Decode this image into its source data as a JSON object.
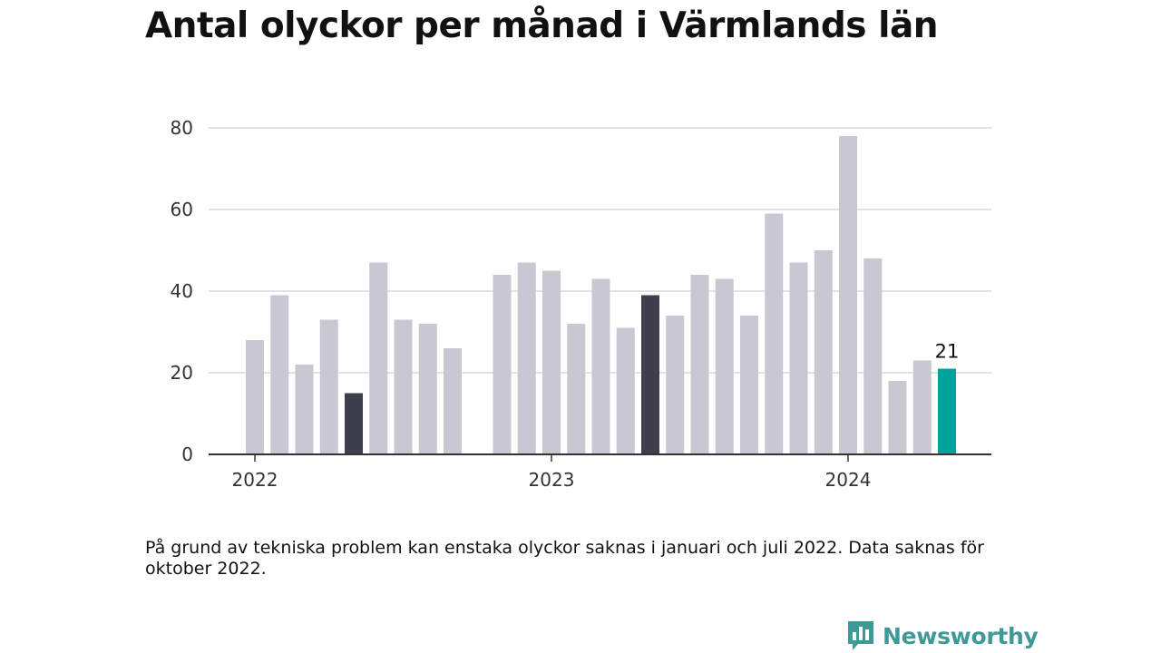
{
  "title": "Antal olyckor per månad i Värmlands län",
  "note": "På grund av tekniska problem kan enstaka olyckor saknas i januari och juli 2022. Data saknas för oktober 2022.",
  "brand": {
    "name": "Newsworthy",
    "icon": "newsworthy-logo-icon",
    "color": "#3f9a97"
  },
  "chart_data": {
    "type": "bar",
    "ylim": [
      0,
      80
    ],
    "y_ticks": [
      0,
      20,
      40,
      60,
      80
    ],
    "x_tick_labels": [
      {
        "label": "2022",
        "at": "2022-01"
      },
      {
        "label": "2023",
        "at": "2023-01"
      },
      {
        "label": "2024",
        "at": "2024-01"
      }
    ],
    "grid": true,
    "colors": {
      "default": "#c8c7d2",
      "dark": "#3f3e4c",
      "highlight": "#00a39a"
    },
    "categories": [
      "2022-01",
      "2022-02",
      "2022-03",
      "2022-04",
      "2022-05",
      "2022-06",
      "2022-07",
      "2022-08",
      "2022-09",
      "2022-10",
      "2022-11",
      "2022-12",
      "2023-01",
      "2023-02",
      "2023-03",
      "2023-04",
      "2023-05",
      "2023-06",
      "2023-07",
      "2023-08",
      "2023-09",
      "2023-10",
      "2023-11",
      "2023-12",
      "2024-01",
      "2024-02",
      "2024-03",
      "2024-04",
      "2024-05"
    ],
    "values": [
      28,
      39,
      22,
      33,
      15,
      47,
      33,
      32,
      26,
      null,
      44,
      47,
      45,
      32,
      43,
      31,
      39,
      34,
      44,
      43,
      34,
      59,
      47,
      50,
      78,
      48,
      18,
      23,
      21
    ],
    "bar_colors": [
      "default",
      "default",
      "default",
      "default",
      "dark",
      "default",
      "default",
      "default",
      "default",
      "default",
      "default",
      "default",
      "default",
      "default",
      "default",
      "default",
      "dark",
      "default",
      "default",
      "default",
      "default",
      "default",
      "default",
      "default",
      "default",
      "default",
      "default",
      "default",
      "highlight"
    ],
    "value_labels": [
      {
        "category": "2024-05",
        "text": "21"
      }
    ]
  }
}
